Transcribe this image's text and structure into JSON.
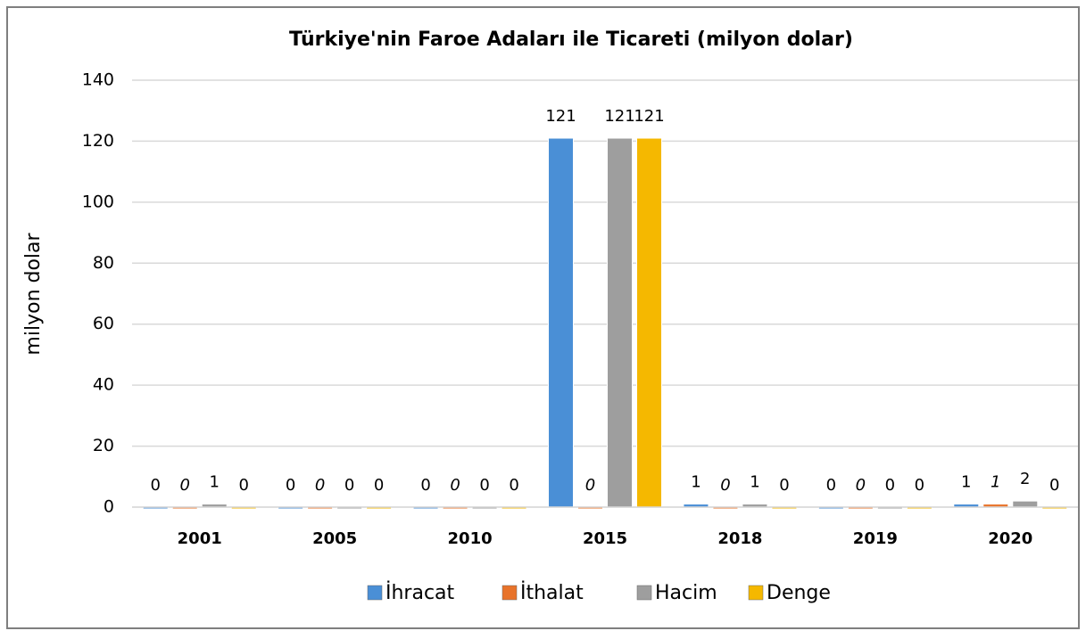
{
  "chart_data": {
    "type": "bar",
    "title": "Türkiye'nin Faroe Adaları ile Ticareti (milyon dolar)",
    "y_label": "milyon dolar",
    "categories": [
      "2001",
      "2005",
      "2010",
      "2015",
      "2018",
      "2019",
      "2020"
    ],
    "series": [
      {
        "name": "İhracat",
        "color": "#4a8fd6",
        "values": [
          0,
          0,
          0,
          121,
          1,
          0,
          1
        ]
      },
      {
        "name": "İthalat",
        "color": "#e8732a",
        "values": [
          0,
          0,
          0,
          0,
          0,
          0,
          1
        ]
      },
      {
        "name": "Hacim",
        "color": "#9e9e9e",
        "values": [
          1,
          0,
          0,
          121,
          1,
          0,
          2
        ]
      },
      {
        "name": "Denge",
        "color": "#f5b800",
        "values": [
          0,
          0,
          0,
          121,
          0,
          0,
          0
        ]
      }
    ],
    "ylim": [
      0,
      140
    ],
    "yticks": [
      0,
      20,
      40,
      60,
      80,
      100,
      120,
      140
    ],
    "grid": true,
    "legend": "bottom"
  }
}
